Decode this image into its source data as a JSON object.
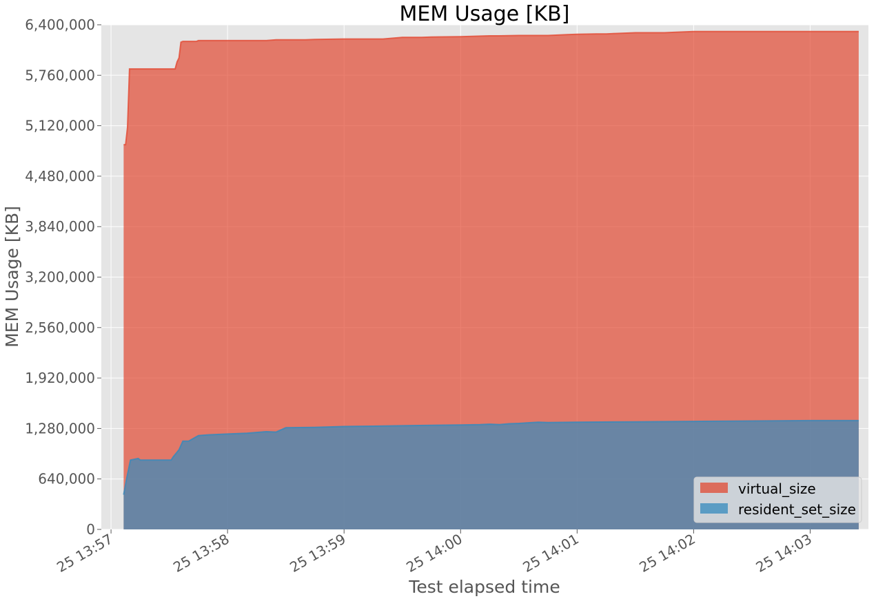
{
  "chart_data": {
    "type": "area",
    "stacked": false,
    "title": "MEM Usage [KB]",
    "xlabel": "Test elapsed time",
    "ylabel": "MEM Usage [KB]",
    "ylim": [
      0,
      6400000
    ],
    "xlim": [
      "13:56:55",
      "14:03:30"
    ],
    "y_ticks": [
      0,
      640000,
      1280000,
      1920000,
      2560000,
      3200000,
      3840000,
      4480000,
      5120000,
      5760000,
      6400000
    ],
    "y_tick_labels": [
      "0",
      "640,000",
      "1,280,000",
      "1,920,000",
      "2,560,000",
      "3,200,000",
      "3,840,000",
      "4,480,000",
      "5,120,000",
      "5,760,000",
      "6,400,000"
    ],
    "x_ticks": [
      "13:57:00",
      "13:58:00",
      "13:59:00",
      "14:00:00",
      "14:01:00",
      "14:02:00",
      "14:03:00"
    ],
    "x_tick_labels": [
      "25 13:57",
      "25 13:58",
      "25 13:59",
      "25 14:00",
      "25 14:01",
      "25 14:02",
      "25 14:03"
    ],
    "grid": true,
    "legend_position": "bottom-right",
    "series": [
      {
        "name": "virtual_size",
        "color": "#e24a33",
        "x": [
          "13:57:06.5",
          "13:57:07.5",
          "13:57:08.5",
          "13:57:09.5",
          "13:57:10",
          "13:57:20",
          "13:57:30",
          "13:57:33",
          "13:57:34",
          "13:57:35",
          "13:57:36",
          "13:57:37",
          "13:57:40",
          "13:57:44",
          "13:57:45",
          "13:58:00",
          "13:58:10",
          "13:58:15",
          "13:58:20",
          "13:58:25",
          "13:58:30",
          "13:58:40",
          "13:58:45",
          "13:59:00",
          "13:59:15",
          "13:59:20",
          "13:59:30",
          "13:59:40",
          "13:59:45",
          "14:00:00",
          "14:00:15",
          "14:00:20",
          "14:00:30",
          "14:00:45",
          "14:00:55",
          "14:01:00",
          "14:01:10",
          "14:01:15",
          "14:01:20",
          "14:01:30",
          "14:01:45",
          "14:01:50",
          "14:02:00",
          "14:02:15",
          "14:02:30",
          "14:02:45",
          "14:03:00",
          "14:03:15",
          "14:03:25"
        ],
        "values": [
          4880000,
          4880000,
          5100000,
          5840000,
          5840000,
          5840000,
          5840000,
          5840000,
          5930000,
          5980000,
          6180000,
          6190000,
          6190000,
          6190000,
          6200000,
          6200000,
          6200000,
          6200000,
          6200000,
          6210000,
          6210000,
          6210000,
          6215000,
          6220000,
          6220000,
          6220000,
          6240000,
          6240000,
          6245000,
          6250000,
          6260000,
          6260000,
          6265000,
          6265000,
          6275000,
          6280000,
          6285000,
          6285000,
          6290000,
          6300000,
          6300000,
          6305000,
          6315000,
          6315000,
          6315000,
          6315000,
          6315000,
          6315000,
          6315000
        ]
      },
      {
        "name": "resident_set_size",
        "color": "#348abd",
        "x": [
          "13:57:06.5",
          "13:57:08",
          "13:57:10",
          "13:57:12",
          "13:57:14",
          "13:57:15",
          "13:57:25",
          "13:57:31",
          "13:57:32",
          "13:57:35",
          "13:57:37",
          "13:57:38",
          "13:57:40",
          "13:57:45",
          "13:57:50",
          "13:58:00",
          "13:58:10",
          "13:58:15",
          "13:58:20",
          "13:58:25",
          "13:58:30",
          "13:58:45",
          "13:59:00",
          "13:59:15",
          "13:59:30",
          "13:59:45",
          "14:00:00",
          "14:00:10",
          "14:00:15",
          "14:00:20",
          "14:00:25",
          "14:00:30",
          "14:00:40",
          "14:00:45",
          "14:01:00",
          "14:01:30",
          "14:02:00",
          "14:02:30",
          "14:03:00",
          "14:03:25"
        ],
        "values": [
          440000,
          640000,
          880000,
          890000,
          900000,
          880000,
          880000,
          880000,
          920000,
          1010000,
          1120000,
          1120000,
          1120000,
          1190000,
          1200000,
          1210000,
          1220000,
          1230000,
          1240000,
          1235000,
          1290000,
          1295000,
          1305000,
          1310000,
          1315000,
          1320000,
          1325000,
          1330000,
          1335000,
          1330000,
          1340000,
          1345000,
          1360000,
          1355000,
          1360000,
          1365000,
          1370000,
          1375000,
          1380000,
          1380000
        ]
      }
    ]
  }
}
